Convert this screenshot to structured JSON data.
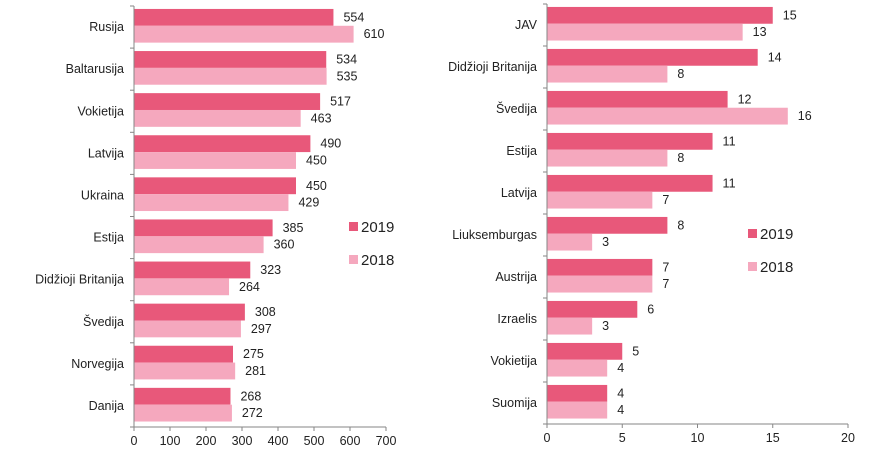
{
  "chart_data": [
    {
      "type": "bar",
      "orientation": "horizontal",
      "categories": [
        "Rusija",
        "Baltarusija",
        "Vokietija",
        "Latvija",
        "Ukraina",
        "Estija",
        "Didžioji Britanija",
        "Švedija",
        "Norvegija",
        "Danija"
      ],
      "series": [
        {
          "name": "2019",
          "color": "#e8587a",
          "values": [
            554,
            534,
            517,
            490,
            450,
            385,
            323,
            308,
            275,
            268
          ]
        },
        {
          "name": "2018",
          "color": "#f5a8be",
          "values": [
            610,
            535,
            463,
            450,
            429,
            360,
            264,
            297,
            281,
            272
          ]
        }
      ],
      "xlim": [
        0,
        700
      ],
      "xticks": [
        0,
        100,
        200,
        300,
        400,
        500,
        600,
        700
      ],
      "grid": false,
      "legend_position": "right"
    },
    {
      "type": "bar",
      "orientation": "horizontal",
      "categories": [
        "JAV",
        "Didžioji Britanija",
        "Švedija",
        "Estija",
        "Latvija",
        "Liuksemburgas",
        "Austrija",
        "Izraelis",
        "Vokietija",
        "Suomija"
      ],
      "series": [
        {
          "name": "2019",
          "color": "#e8587a",
          "values": [
            15,
            14,
            12,
            11,
            11,
            8,
            7,
            6,
            5,
            4
          ]
        },
        {
          "name": "2018",
          "color": "#f5a8be",
          "values": [
            13,
            8,
            16,
            8,
            7,
            3,
            7,
            3,
            4,
            4
          ]
        }
      ],
      "xlim": [
        0,
        20
      ],
      "xticks": [
        0,
        5,
        10,
        15,
        20
      ],
      "grid": false,
      "legend_position": "right"
    }
  ]
}
